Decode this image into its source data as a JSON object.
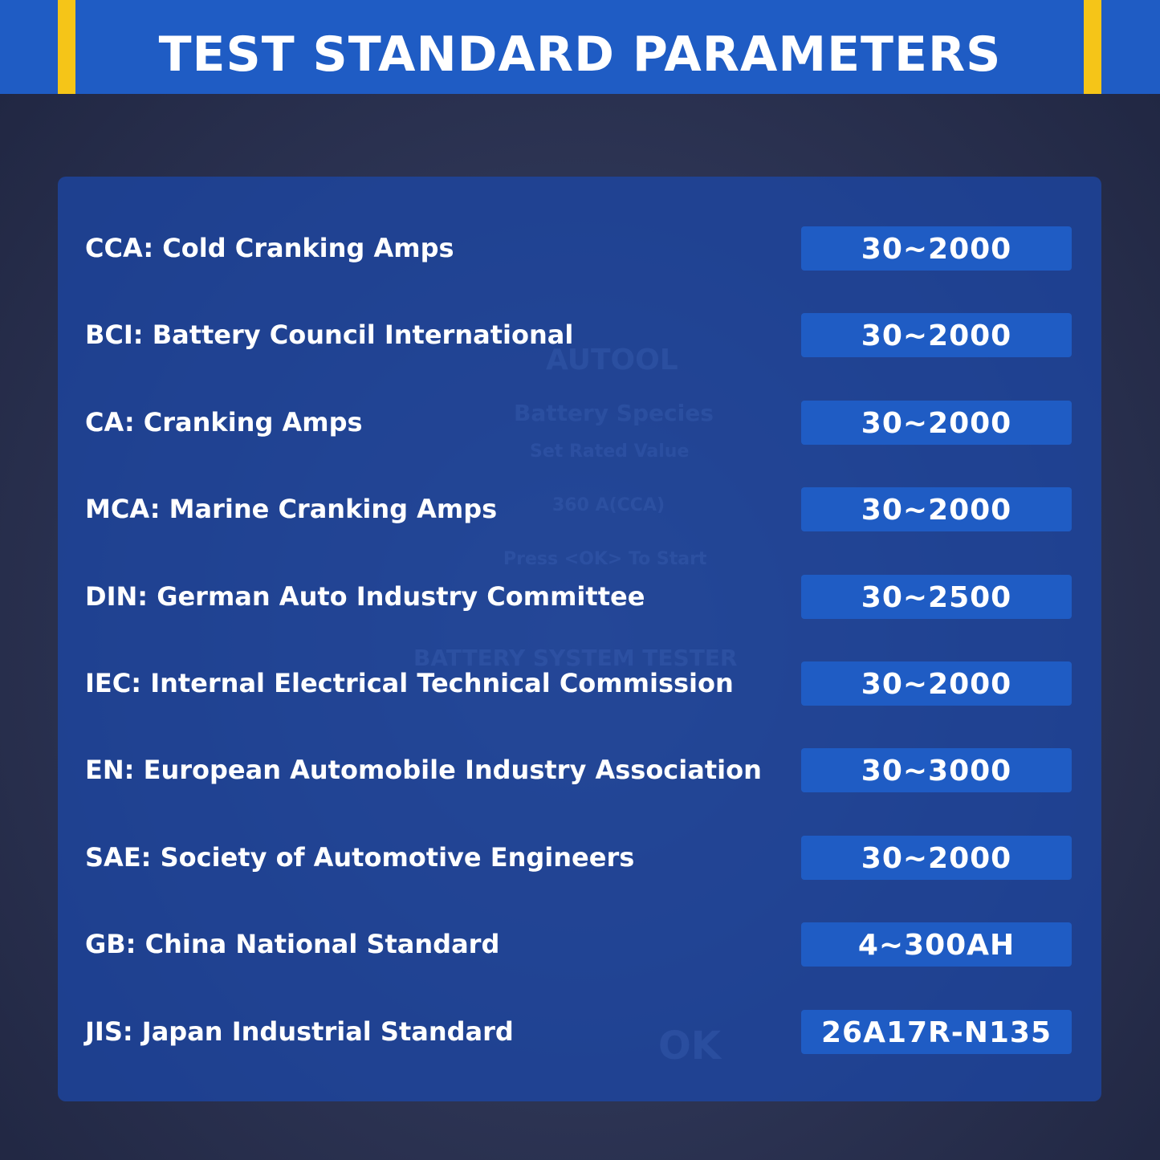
{
  "header": {
    "title": "TEST STANDARD PARAMETERS"
  },
  "table": {
    "rows": [
      [
        "CCA: Cold Cranking Amps",
        "30~2000"
      ],
      [
        "BCI: Battery Council International",
        "30~2000"
      ],
      [
        "CA: Cranking Amps",
        "30~2000"
      ],
      [
        "MCA: Marine Cranking Amps",
        "30~2000"
      ],
      [
        "DIN: German Auto Industry Committee",
        "30~2500"
      ],
      [
        "IEC: Internal Electrical Technical Commission",
        "30~2000"
      ],
      [
        "EN: European Automobile Industry Association",
        "30~3000"
      ],
      [
        "SAE: Society of Automotive Engineers",
        "30~2000"
      ],
      [
        "GB: China National Standard",
        "4~300AH"
      ],
      [
        "JIS: Japan Industrial Standard",
        "26A17R-N135"
      ]
    ]
  },
  "background": {
    "texts": [
      "AUTOOL",
      "Battery Species",
      "Set Rated Value",
      "360 A(CCA)",
      "Press <OK> To Start",
      "BATTERY SYSTEM TESTER",
      "OK"
    ]
  }
}
